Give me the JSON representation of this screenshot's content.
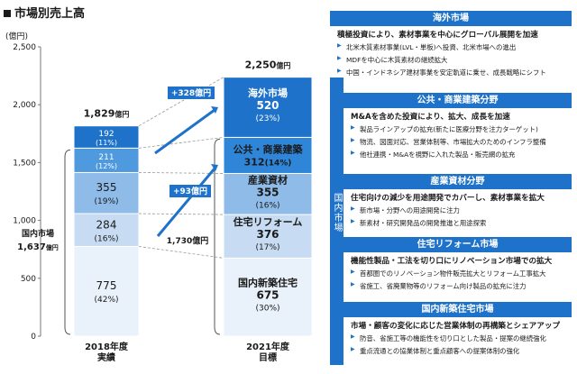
{
  "title": "市場別売上高",
  "unit_label": "(億円)",
  "chart_data": {
    "type": "bar",
    "stacked": true,
    "title": "市場別売上高",
    "ylabel": "(億円)",
    "ylim": [
      0,
      2500
    ],
    "yticks": [
      0,
      500,
      1000,
      1500,
      2000,
      2500
    ],
    "ytick_labels": [
      "0",
      "500",
      "1,000",
      "1,500",
      "2,000",
      "2,500"
    ],
    "grid": false,
    "categories": [
      "2018年度\n実績",
      "2021年度\n目標"
    ],
    "category_lines": [
      [
        "2018年度",
        "実績"
      ],
      [
        "2021年度",
        "目標"
      ]
    ],
    "series": [
      {
        "name": "国内新築住宅",
        "values": [
          775,
          675
        ],
        "shares": [
          "(42%)",
          "(30%)"
        ],
        "colors": [
          "#e9f1fa",
          "#e9f1fa"
        ]
      },
      {
        "name": "住宅リフォーム",
        "values": [
          284,
          376
        ],
        "shares": [
          "(16%)",
          "(17%)"
        ],
        "colors": [
          "#c7dcf2",
          "#c7dcf2"
        ]
      },
      {
        "name": "産業資材",
        "values": [
          355,
          355
        ],
        "shares": [
          "(19%)",
          "(16%)"
        ],
        "colors": [
          "#8ebbe8",
          "#8ebbe8"
        ]
      },
      {
        "name": "公共・商業建築",
        "values": [
          211,
          312
        ],
        "shares": [
          "(12%)",
          "(14%)"
        ],
        "colors": [
          "#4f9ade",
          "#2f86d9"
        ]
      },
      {
        "name": "海外市場",
        "values": [
          192,
          520
        ],
        "shares": [
          "(11%)",
          "(23%)"
        ],
        "colors": [
          "#1f72c9",
          "#1f72c9"
        ]
      }
    ],
    "totals": [
      {
        "value": "1,829",
        "unit": "億円"
      },
      {
        "value": "2,250",
        "unit": "億円"
      }
    ],
    "annotations": {
      "domestic_2018_label": "国内市場",
      "domestic_2018_value": "1,637",
      "domestic_2018_unit": "億円",
      "domestic_2021_value": "1,730億円",
      "increase_overseas": "+328億円",
      "increase_public": "+93億円"
    }
  },
  "panel": {
    "domestic_label": "国内市場",
    "sections": [
      {
        "key": "overseas",
        "title": "海外市場",
        "lead": "積極投資により、素材事業を中心にグローバル展開を加速",
        "items": [
          "北米木質素材事業(LVL・単板)へ投資、北米市場への進出",
          "MDFを中心に木質素材の継続拡大",
          "中国・インドネシア建材事業を安定軌道に乗せ、成長戦略にシフト"
        ]
      },
      {
        "key": "public",
        "title": "公共・商業建築分野",
        "lead": "M&Aを含めた投資により、拡大、成長を加速",
        "items": [
          "製品ラインアップの拡充(新たに医療分野を注力ターゲット)",
          "物流、図面対応、営業体制等、市場拡大のためのインフラ整備",
          "他社連携・M&Aを視野に入れた製品・販売網の拡充"
        ]
      },
      {
        "key": "industrial",
        "title": "産業資材分野",
        "lead": "住宅向けの減少を用途開発でカバーし、素材事業を拡大",
        "items": [
          "新市場・分野への用途開発に注力",
          "新素材・研究開発品の開発推進と用途探索"
        ]
      },
      {
        "key": "reform",
        "title": "住宅リフォーム市場",
        "lead": "機能性製品・工法を切り口にリノベーション市場での拡大",
        "items": [
          "首都圏でのリノベーション物件販売拡大とリフォーム工事拡大",
          "省施工、省廃棄物等のリフォーム向け製品の拡充に注力"
        ]
      },
      {
        "key": "newhouse",
        "title": "国内新築住宅市場",
        "lead": "市場・顧客の変化に応じた営業体制の再構築とシェアアップ",
        "items": [
          "防音、省施工等の機能性を切り口とした製品・提案の継続強化",
          "重点流通との協業体制と重点顧客への提案体制の強化"
        ]
      }
    ]
  }
}
